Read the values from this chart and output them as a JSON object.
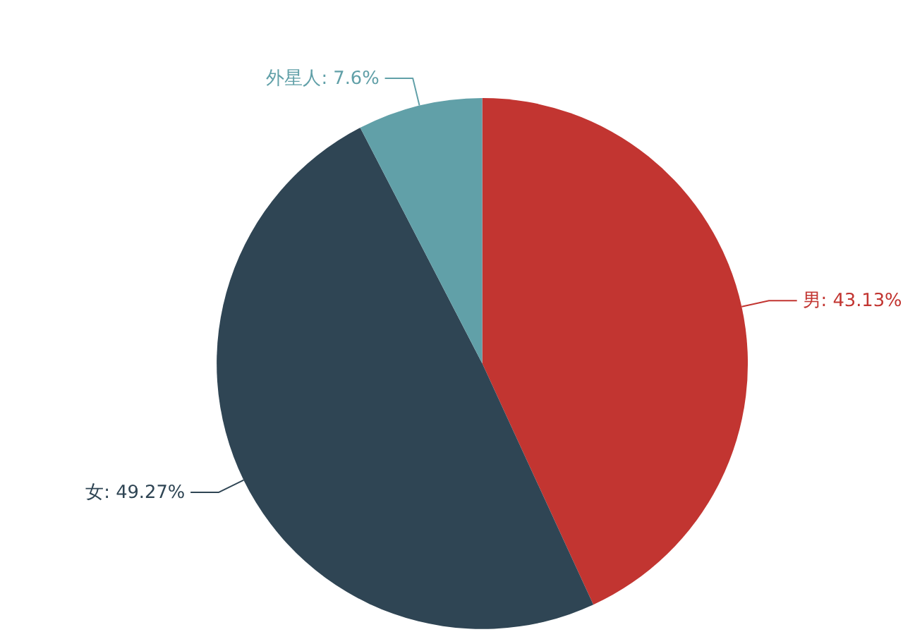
{
  "chart_data": {
    "type": "pie",
    "categories": [
      "男",
      "女",
      "外星人"
    ],
    "values": [
      43.13,
      49.27,
      7.6
    ],
    "colors": [
      "#c23531",
      "#2f4554",
      "#61a0a8"
    ],
    "value_labels": [
      "43.13%",
      "49.27%",
      "7.6%"
    ],
    "legend": false
  }
}
